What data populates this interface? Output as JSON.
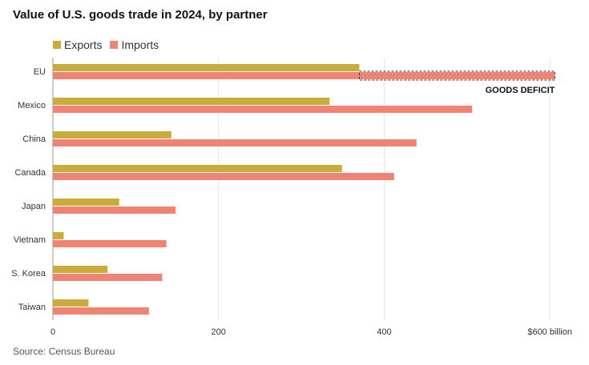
{
  "chart_data": {
    "type": "bar",
    "orientation": "horizontal",
    "title": "Value of U.S. goods trade in 2024, by partner",
    "categories": [
      "EU",
      "Mexico",
      "China",
      "Canada",
      "Japan",
      "Vietnam",
      "S. Korea",
      "Taiwan"
    ],
    "series": [
      {
        "name": "Exports",
        "color": "#c8ac3c",
        "values": [
          370,
          334,
          143,
          349,
          80,
          13,
          66,
          43
        ]
      },
      {
        "name": "Imports",
        "color": "#ef8374",
        "values": [
          606,
          506,
          439,
          412,
          148,
          137,
          132,
          116
        ]
      }
    ],
    "x_ticks": [
      {
        "value": 0,
        "label": "0"
      },
      {
        "value": 200,
        "label": "200"
      },
      {
        "value": 400,
        "label": "400"
      },
      {
        "value": 600,
        "label": "$600 billion"
      }
    ],
    "xlim": [
      0,
      625
    ],
    "grid": "vertical",
    "legend_position": "top-left",
    "annotation": {
      "label": "GOODS DEFICIT",
      "category": "EU",
      "from": 370,
      "to": 606
    },
    "source": "Source: Census Bureau"
  }
}
